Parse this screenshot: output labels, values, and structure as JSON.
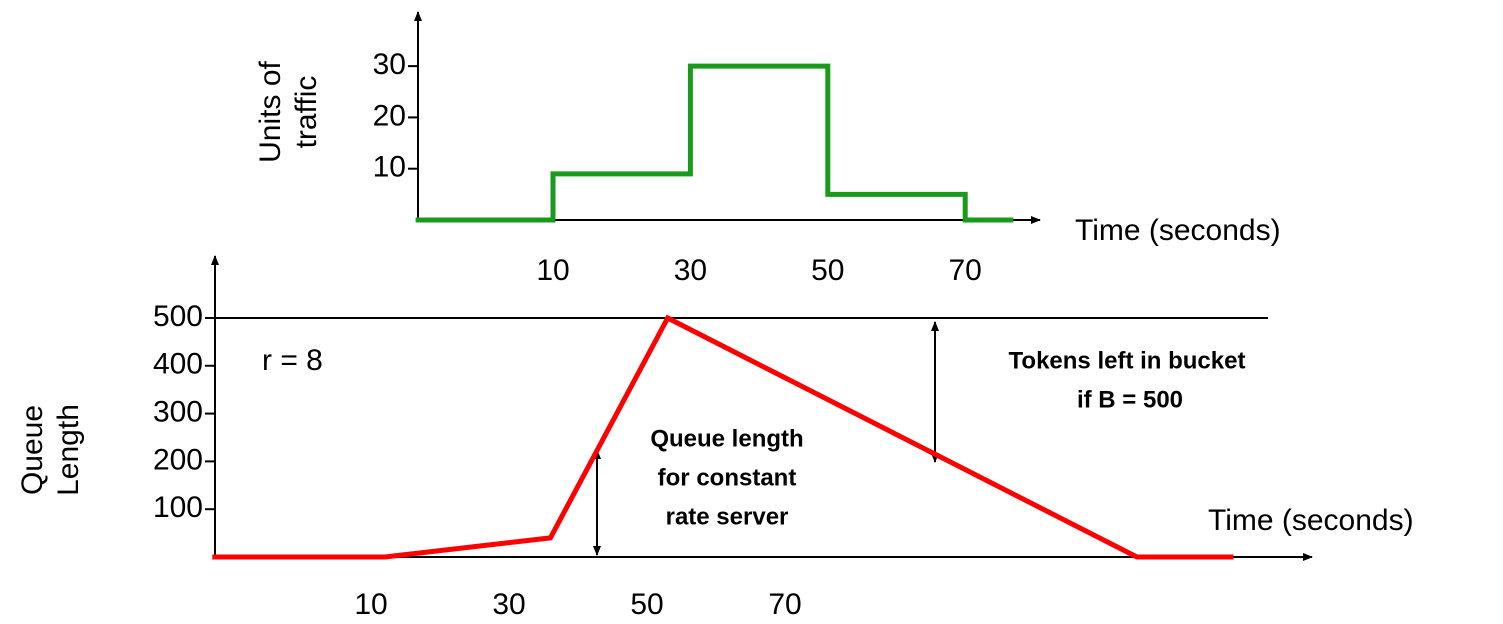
{
  "chart_data": [
    {
      "type": "line",
      "y_label": [
        "Units of",
        "traffic"
      ],
      "x_label": "Time (seconds)",
      "xlim": [
        -10,
        80
      ],
      "ylim": [
        0,
        41
      ],
      "xticks": [
        10,
        30,
        50,
        70
      ],
      "yticks": [
        10,
        20,
        30
      ],
      "series": [
        {
          "color": "#1a9a1a",
          "x": [
            -10,
            10,
            10,
            30,
            30,
            50,
            50,
            70,
            70,
            77
          ],
          "values": [
            0,
            0,
            9,
            9,
            30,
            30,
            5,
            5,
            0,
            0
          ]
        }
      ]
    },
    {
      "type": "line",
      "y_label": [
        "Queue",
        "Length"
      ],
      "x_label": "Time (seconds)",
      "xlim": [
        -13,
        145
      ],
      "ylim": [
        0,
        620
      ],
      "xticks": [
        10,
        30,
        50,
        70
      ],
      "yticks": [
        100,
        200,
        300,
        400,
        500
      ],
      "bucket_level": 500,
      "annotations": {
        "rate": "r = 8",
        "queue": [
          "Queue length",
          "for constant",
          "rate server"
        ],
        "tokens": [
          "Tokens left in bucket",
          "if B = 500"
        ]
      },
      "series": [
        {
          "color": "#ff0000",
          "x": [
            -13,
            12,
            36,
            53,
            121,
            135
          ],
          "values": [
            0,
            0,
            40,
            500,
            0,
            0
          ]
        }
      ]
    }
  ]
}
